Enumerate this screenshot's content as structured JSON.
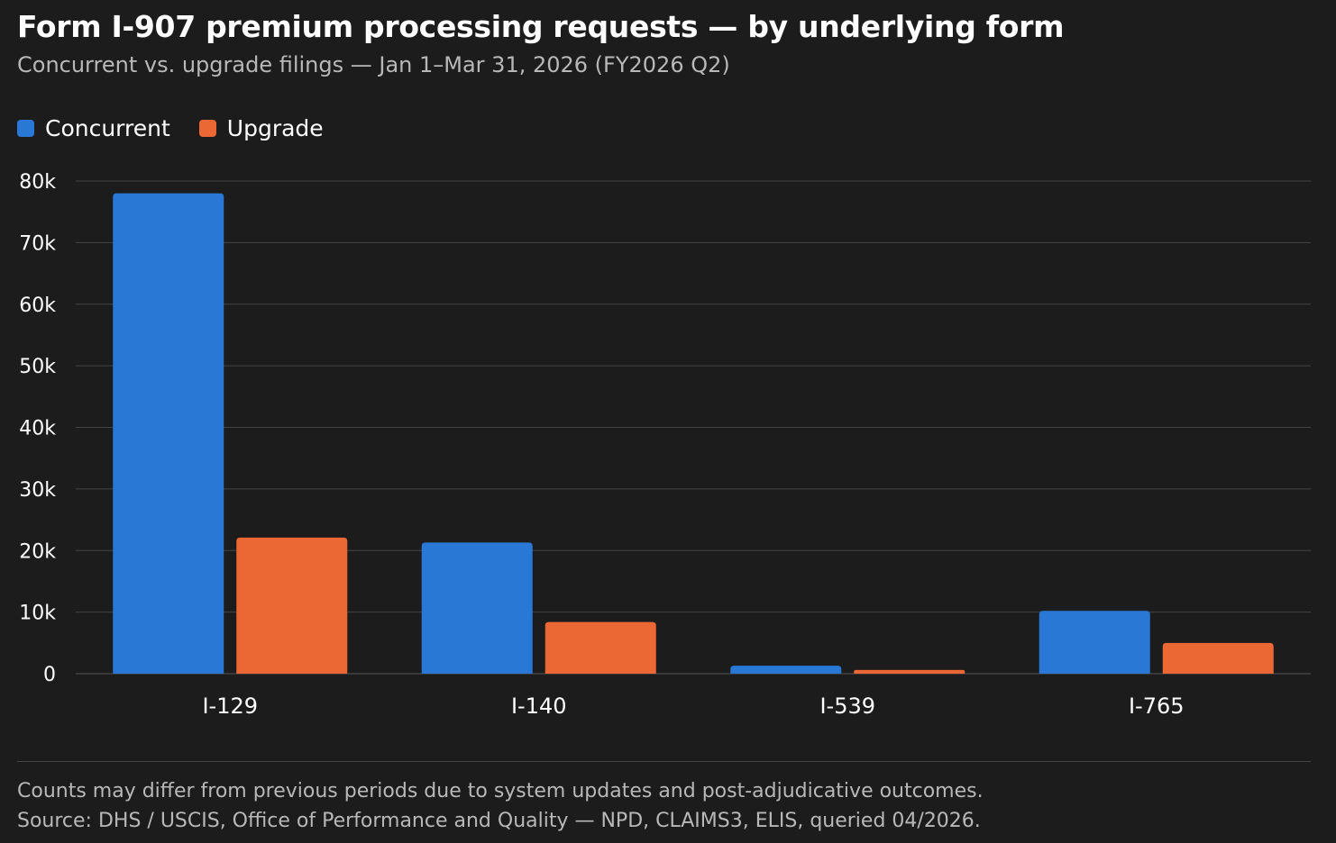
{
  "colors": {
    "background": "#1c1c1c",
    "concurrent": "#2a78d6",
    "upgrade": "#eb6834",
    "grid": "#444444",
    "text_primary": "#ffffff",
    "text_secondary": "#b8b8b8"
  },
  "chart_data": {
    "type": "bar",
    "title": "Form I-907 premium processing requests — by underlying form",
    "subtitle": "Concurrent vs. upgrade filings — Jan 1–Mar 31, 2026 (FY2026 Q2)",
    "categories": [
      "I-129",
      "I-140",
      "I-539",
      "I-765"
    ],
    "series": [
      {
        "name": "Concurrent",
        "color": "#2a78d6",
        "values": [
          78000,
          21300,
          1300,
          10200
        ]
      },
      {
        "name": "Upgrade",
        "color": "#eb6834",
        "values": [
          22100,
          8400,
          600,
          5000
        ]
      }
    ],
    "ylim": [
      0,
      80000
    ],
    "yticks": [
      0,
      10000,
      20000,
      30000,
      40000,
      50000,
      60000,
      70000,
      80000
    ],
    "ytick_labels": [
      "0",
      "10k",
      "20k",
      "30k",
      "40k",
      "50k",
      "60k",
      "70k",
      "80k"
    ],
    "xlabel": "",
    "ylabel": "",
    "grid": true,
    "legend_position": "top-left"
  },
  "footnotes": {
    "line1": "Counts may differ from previous periods due to system updates and post-adjudicative outcomes.",
    "line2": "Source: DHS / USCIS, Office of Performance and Quality — NPD, CLAIMS3, ELIS, queried 04/2026."
  }
}
